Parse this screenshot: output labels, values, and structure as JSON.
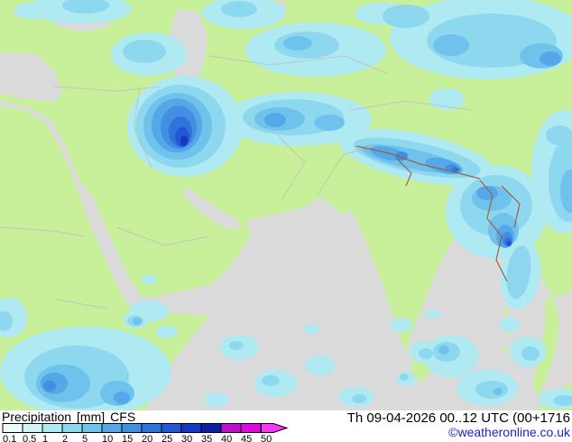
{
  "legend": {
    "title": "Precipitation",
    "unit": "[mm]",
    "model": "CFS",
    "datetime": "Th 09-04-2026 00..12 UTC (00+1716",
    "copyright": "©weatheronline.co.uk",
    "scale": {
      "labels": [
        "0.1",
        "0.5",
        "1",
        "2",
        "5",
        "10",
        "15",
        "20",
        "25",
        "30",
        "35",
        "40",
        "45",
        "50"
      ],
      "colors": [
        "#E8FCFC",
        "#CFF5F7",
        "#AFEAF3",
        "#8ED8EF",
        "#6FC2EB",
        "#55A8E7",
        "#418EE2",
        "#2F74DC",
        "#2256D4",
        "#1738C4",
        "#0D1FA4",
        "#BC10CE",
        "#E008E0",
        "#F838F8"
      ]
    }
  },
  "map": {
    "colors": {
      "sea": "#DBDBDB",
      "land": "#C8F09B",
      "border": "#BEBEBE",
      "mountain_border": "#A05A3C"
    }
  }
}
